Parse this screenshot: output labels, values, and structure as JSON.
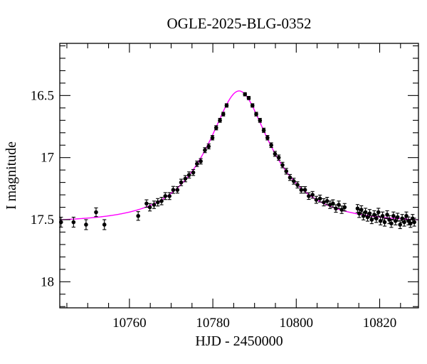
{
  "figure": {
    "background_color": "#ffffff",
    "frame_color": "#000000"
  },
  "chart_data": {
    "type": "scatter",
    "title": "OGLE-2025-BLG-0352",
    "xlabel": "HJD - 2450000",
    "ylabel": "I magnitude",
    "grid": false,
    "legend": null,
    "x_axis": {
      "lim": [
        10743.3,
        10829.3
      ],
      "major_ticks": [
        10760,
        10780,
        10800,
        10820
      ],
      "tick_labels": [
        "10760",
        "10780",
        "10800",
        "10820"
      ],
      "minor_step": 5
    },
    "y_axis": {
      "lim": [
        16.08,
        18.21
      ],
      "major_ticks": [
        16.5,
        17.0,
        17.5,
        18.0
      ],
      "tick_labels": [
        "16.5",
        "17",
        "17.5",
        "18"
      ],
      "minor_step": 0.1,
      "inverted": true
    },
    "model_curve": {
      "kind": "paczynski_microlensing",
      "t0": 10786.3,
      "tE": 14.7,
      "u0": 0.4,
      "baseline_mag": 17.52,
      "peak_mag": 16.46,
      "color": "#ff00ff"
    },
    "points_color": "#000000",
    "points_format": [
      "hjd_minus_2450000",
      "i_magnitude",
      "error_mag"
    ],
    "points": [
      [
        10743.6,
        17.52,
        0.04
      ],
      [
        10746.6,
        17.52,
        0.04
      ],
      [
        10749.6,
        17.54,
        0.04
      ],
      [
        10752.0,
        17.44,
        0.035
      ],
      [
        10754.0,
        17.54,
        0.04
      ],
      [
        10762.1,
        17.47,
        0.035
      ],
      [
        10764.1,
        17.37,
        0.03
      ],
      [
        10764.9,
        17.4,
        0.03
      ],
      [
        10765.9,
        17.38,
        0.03
      ],
      [
        10766.8,
        17.36,
        0.03
      ],
      [
        10767.7,
        17.35,
        0.03
      ],
      [
        10768.6,
        17.31,
        0.028
      ],
      [
        10769.6,
        17.31,
        0.028
      ],
      [
        10770.5,
        17.26,
        0.028
      ],
      [
        10771.5,
        17.26,
        0.026
      ],
      [
        10772.4,
        17.2,
        0.026
      ],
      [
        10773.4,
        17.17,
        0.025
      ],
      [
        10774.3,
        17.14,
        0.025
      ],
      [
        10775.3,
        17.12,
        0.024
      ],
      [
        10776.2,
        17.05,
        0.022
      ],
      [
        10777.1,
        17.03,
        0.022
      ],
      [
        10778.1,
        16.94,
        0.02
      ],
      [
        10779.0,
        16.91,
        0.02
      ],
      [
        10779.9,
        16.84,
        0.018
      ],
      [
        10780.8,
        16.76,
        0.017
      ],
      [
        10781.7,
        16.7,
        0.016
      ],
      [
        10782.5,
        16.65,
        0.015
      ],
      [
        10783.3,
        16.58,
        0.014
      ],
      [
        10787.7,
        16.49,
        0.013
      ],
      [
        10788.6,
        16.52,
        0.013
      ],
      [
        10789.5,
        16.58,
        0.014
      ],
      [
        10790.4,
        16.65,
        0.015
      ],
      [
        10791.3,
        16.7,
        0.016
      ],
      [
        10792.2,
        16.78,
        0.017
      ],
      [
        10793.1,
        16.84,
        0.018
      ],
      [
        10794.0,
        16.9,
        0.019
      ],
      [
        10794.9,
        16.97,
        0.02
      ],
      [
        10795.8,
        17.0,
        0.021
      ],
      [
        10796.7,
        17.06,
        0.022
      ],
      [
        10797.6,
        17.11,
        0.023
      ],
      [
        10798.5,
        17.16,
        0.024
      ],
      [
        10799.4,
        17.19,
        0.024
      ],
      [
        10800.3,
        17.22,
        0.025
      ],
      [
        10801.2,
        17.26,
        0.026
      ],
      [
        10802.1,
        17.26,
        0.026
      ],
      [
        10803.0,
        17.31,
        0.027
      ],
      [
        10803.9,
        17.3,
        0.027
      ],
      [
        10804.8,
        17.34,
        0.028
      ],
      [
        10805.7,
        17.33,
        0.028
      ],
      [
        10806.6,
        17.36,
        0.029
      ],
      [
        10807.4,
        17.35,
        0.03
      ],
      [
        10808.1,
        17.38,
        0.03
      ],
      [
        10808.8,
        17.37,
        0.03
      ],
      [
        10809.5,
        17.41,
        0.03
      ],
      [
        10810.2,
        17.38,
        0.03
      ],
      [
        10810.9,
        17.42,
        0.03
      ],
      [
        10811.6,
        17.4,
        0.03
      ],
      [
        10814.7,
        17.41,
        0.032
      ],
      [
        10815.1,
        17.45,
        0.032
      ],
      [
        10815.6,
        17.42,
        0.032
      ],
      [
        10816.1,
        17.47,
        0.032
      ],
      [
        10816.6,
        17.44,
        0.032
      ],
      [
        10817.1,
        17.48,
        0.032
      ],
      [
        10817.6,
        17.45,
        0.032
      ],
      [
        10818.1,
        17.5,
        0.032
      ],
      [
        10818.7,
        17.46,
        0.032
      ],
      [
        10819.2,
        17.49,
        0.032
      ],
      [
        10819.7,
        17.44,
        0.032
      ],
      [
        10820.2,
        17.51,
        0.032
      ],
      [
        10820.7,
        17.47,
        0.032
      ],
      [
        10821.2,
        17.52,
        0.032
      ],
      [
        10821.8,
        17.46,
        0.032
      ],
      [
        10822.3,
        17.5,
        0.032
      ],
      [
        10822.8,
        17.53,
        0.032
      ],
      [
        10823.3,
        17.47,
        0.032
      ],
      [
        10823.8,
        17.51,
        0.032
      ],
      [
        10824.3,
        17.48,
        0.032
      ],
      [
        10824.9,
        17.54,
        0.032
      ],
      [
        10825.4,
        17.49,
        0.032
      ],
      [
        10825.9,
        17.52,
        0.032
      ],
      [
        10826.4,
        17.47,
        0.032
      ],
      [
        10826.9,
        17.51,
        0.032
      ],
      [
        10827.4,
        17.53,
        0.032
      ],
      [
        10827.9,
        17.49,
        0.032
      ],
      [
        10828.3,
        17.52,
        0.032
      ]
    ]
  }
}
